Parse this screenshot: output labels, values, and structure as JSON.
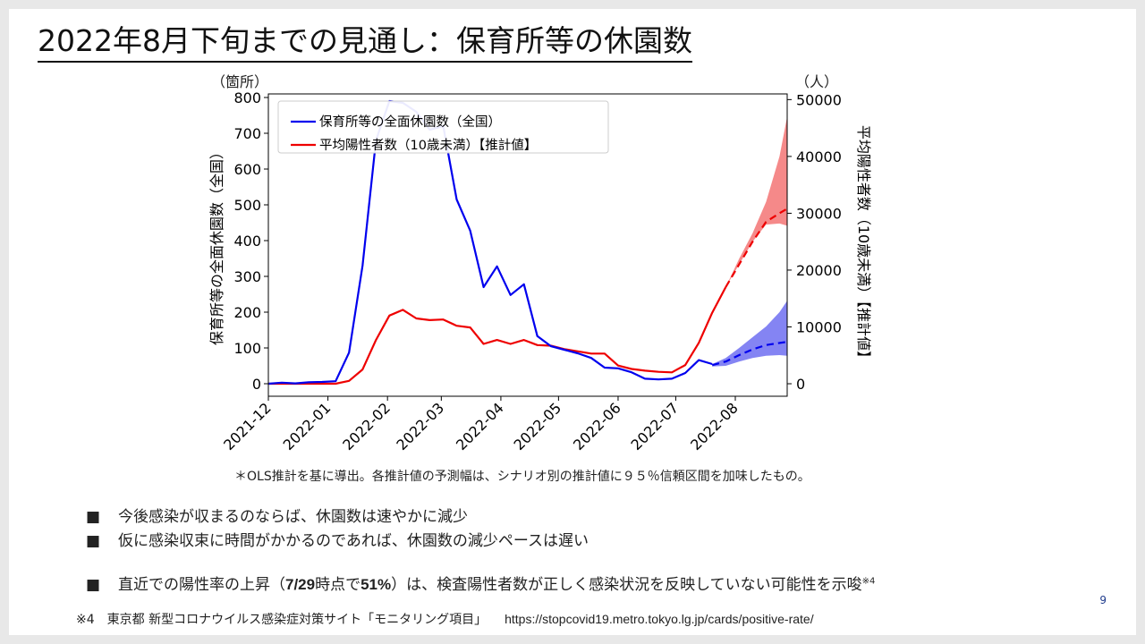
{
  "slide": {
    "title": "2022年8月下旬までの見通し：保育所等の休園数",
    "left_unit": "（箇所）",
    "right_unit": "（人）",
    "note": "＊OLS推計を基に導出。各推計値の予測幅は、シナリオ別の推計値に９５％信頼区間を加味したもの。",
    "bullets": [
      {
        "text": "今後感染が収まるのならば、休園数は速やかに減少"
      },
      {
        "text": "仮に感染収束に時間がかかるのであれば、休園数の減少ペースは遅い"
      },
      {
        "pre": "直近での陽性率の上昇（",
        "bold1": "7/29",
        "mid1": "時点で",
        "bold2": "51%",
        "post": "）は、検査陽性者数が正しく感染状況を反映していない可能性を示唆",
        "sup": "※4"
      }
    ],
    "bullet_marker": "■",
    "page_number": "9",
    "footer": {
      "ref": "※4　東京都 新型コロナウイルス感染症対策サイト「モニタリング項目」",
      "url": "https://stopcovid19.metro.tokyo.lg.jp/cards/positive-rate/"
    }
  },
  "chart_data": {
    "type": "line",
    "xlabel": "",
    "ylabel_left": "保育所等の全面休園数（全国）",
    "ylabel_right": "平均陽性者数（10歳未満）【推計値】",
    "x_ticks": [
      "2021-12",
      "2022-01",
      "2022-02",
      "2022-03",
      "2022-04",
      "2022-05",
      "2022-06",
      "2022-07",
      "2022-08"
    ],
    "x_range": [
      "2021-12-01",
      "2022-08-28"
    ],
    "y_left_ticks": [
      0,
      100,
      200,
      300,
      400,
      500,
      600,
      700,
      800
    ],
    "y_left_range": [
      -35,
      810
    ],
    "y_right_ticks": [
      0,
      10000,
      20000,
      30000,
      40000,
      50000
    ],
    "y_right_range": [
      -2200,
      51000
    ],
    "legend": [
      "保育所等の全面休園数（全国）",
      "平均陽性者数（10歳未満）【推計値】"
    ],
    "legend_position": "top-left",
    "colors": {
      "closures": "#0000ee",
      "positives": "#ee0000",
      "band_red": "#f47c7c",
      "band_blue": "#7777f2"
    },
    "series": [
      {
        "name": "保育所等の全面休園数（全国）",
        "axis": "left",
        "x": [
          "2021-12-01",
          "2021-12-08",
          "2021-12-15",
          "2021-12-22",
          "2021-12-29",
          "2022-01-05",
          "2022-01-12",
          "2022-01-19",
          "2022-01-26",
          "2022-02-02",
          "2022-02-09",
          "2022-02-16",
          "2022-02-23",
          "2022-03-02",
          "2022-03-09",
          "2022-03-16",
          "2022-03-23",
          "2022-03-30",
          "2022-04-06",
          "2022-04-13",
          "2022-04-20",
          "2022-04-27",
          "2022-05-04",
          "2022-05-11",
          "2022-05-18",
          "2022-05-25",
          "2022-06-01",
          "2022-06-08",
          "2022-06-15",
          "2022-06-22",
          "2022-06-29",
          "2022-07-06",
          "2022-07-13",
          "2022-07-20"
        ],
        "values": [
          0,
          3,
          1,
          4,
          5,
          7,
          87,
          330,
          680,
          790,
          785,
          760,
          710,
          720,
          515,
          428,
          270,
          328,
          248,
          278,
          133,
          105,
          95,
          85,
          72,
          45,
          43,
          32,
          14,
          12,
          14,
          30,
          66,
          55
        ]
      },
      {
        "name": "平均陽性者数（10歳未満）【推計値】",
        "axis": "right",
        "x": [
          "2021-12-01",
          "2021-12-15",
          "2021-12-29",
          "2022-01-05",
          "2022-01-12",
          "2022-01-19",
          "2022-01-26",
          "2022-02-02",
          "2022-02-09",
          "2022-02-16",
          "2022-02-23",
          "2022-03-02",
          "2022-03-09",
          "2022-03-16",
          "2022-03-23",
          "2022-03-30",
          "2022-04-06",
          "2022-04-13",
          "2022-04-20",
          "2022-04-27",
          "2022-05-04",
          "2022-05-11",
          "2022-05-18",
          "2022-05-25",
          "2022-06-01",
          "2022-06-08",
          "2022-06-15",
          "2022-06-22",
          "2022-06-29",
          "2022-07-06",
          "2022-07-13",
          "2022-07-20",
          "2022-07-27"
        ],
        "values": [
          0,
          0,
          0,
          0,
          500,
          2500,
          7700,
          12000,
          13000,
          11500,
          11200,
          11300,
          10200,
          9900,
          7000,
          7700,
          7000,
          7700,
          6800,
          6700,
          6100,
          5700,
          5300,
          5300,
          3200,
          2600,
          2300,
          2100,
          2000,
          3300,
          7200,
          12500,
          17000
        ]
      },
      {
        "name": "保育所等の全面休園数（全国）推計",
        "axis": "left",
        "style": "dashed",
        "x": [
          "2022-07-20",
          "2022-07-27",
          "2022-08-03",
          "2022-08-10",
          "2022-08-17",
          "2022-08-24",
          "2022-08-28"
        ],
        "values": [
          52,
          62,
          80,
          96,
          108,
          114,
          117
        ],
        "band_low": [
          48,
          50,
          62,
          72,
          78,
          80,
          78
        ],
        "band_high": [
          55,
          72,
          100,
          130,
          160,
          200,
          232
        ]
      },
      {
        "name": "平均陽性者数（10歳未満）推計",
        "axis": "right",
        "style": "dashed",
        "x": [
          "2022-07-27",
          "2022-08-03",
          "2022-08-10",
          "2022-08-17",
          "2022-08-24",
          "2022-08-28"
        ],
        "values": [
          17000,
          21000,
          25000,
          28500,
          30000,
          30800
        ],
        "band_low": [
          17000,
          21000,
          25000,
          28000,
          28200,
          27800
        ],
        "band_high": [
          17000,
          22000,
          26500,
          32000,
          40000,
          47000
        ]
      }
    ]
  }
}
